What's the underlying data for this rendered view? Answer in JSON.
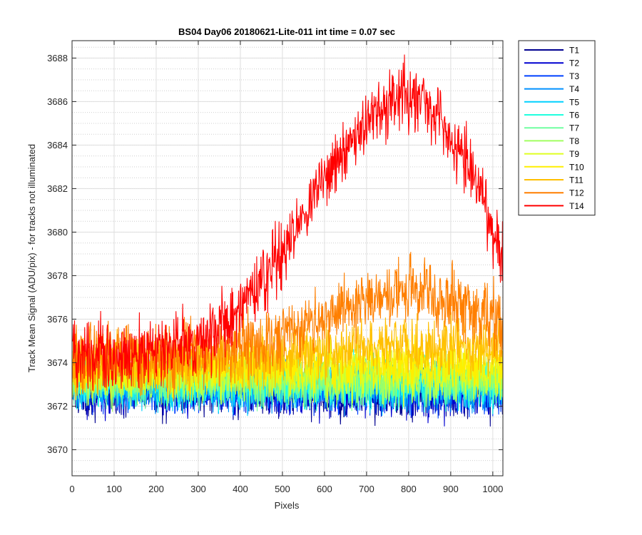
{
  "chart_data": {
    "type": "line",
    "title": "BS04 Day06 20180621-Lite-011 int time = 0.07 sec",
    "xlabel": "Pixels",
    "ylabel": "Track Mean Signal (ADU/pix) - for tracks not illuminated",
    "xlim": [
      0,
      1024
    ],
    "ylim": [
      3668.8,
      3688.8
    ],
    "xticks": [
      0,
      100,
      200,
      300,
      400,
      500,
      600,
      700,
      800,
      900,
      1000
    ],
    "yticks": [
      3670,
      3672,
      3674,
      3676,
      3678,
      3680,
      3682,
      3684,
      3686,
      3688
    ],
    "y_minor_step": 0.5,
    "grid": true,
    "legend_position": "outside-top-right",
    "series": [
      {
        "name": "T1",
        "color": "#00008f",
        "base": [
          [
            0,
            3672.7
          ],
          [
            1024,
            3672.5
          ]
        ],
        "noise": 0.55
      },
      {
        "name": "T2",
        "color": "#0000d0",
        "base": [
          [
            0,
            3672.8
          ],
          [
            1024,
            3672.6
          ]
        ],
        "noise": 0.55
      },
      {
        "name": "T3",
        "color": "#0040ff",
        "base": [
          [
            0,
            3672.9
          ],
          [
            1024,
            3672.7
          ]
        ],
        "noise": 0.55
      },
      {
        "name": "T4",
        "color": "#0090ff",
        "base": [
          [
            0,
            3673.0
          ],
          [
            1024,
            3672.8
          ]
        ],
        "noise": 0.55
      },
      {
        "name": "T5",
        "color": "#00d0ff",
        "base": [
          [
            0,
            3673.0
          ],
          [
            1024,
            3672.9
          ]
        ],
        "noise": 0.55
      },
      {
        "name": "T6",
        "color": "#20ffdf",
        "base": [
          [
            0,
            3673.1
          ],
          [
            1024,
            3673.0
          ]
        ],
        "noise": 0.55
      },
      {
        "name": "T7",
        "color": "#70ffa0",
        "base": [
          [
            0,
            3673.2
          ],
          [
            1024,
            3673.1
          ]
        ],
        "noise": 0.55
      },
      {
        "name": "T8",
        "color": "#a0ff60",
        "base": [
          [
            0,
            3673.3
          ],
          [
            1024,
            3673.3
          ]
        ],
        "noise": 0.55
      },
      {
        "name": "T9",
        "color": "#dfff20",
        "base": [
          [
            0,
            3673.5
          ],
          [
            1024,
            3673.6
          ]
        ],
        "noise": 0.6
      },
      {
        "name": "T10",
        "color": "#ffef00",
        "base": [
          [
            0,
            3673.7
          ],
          [
            400,
            3673.8
          ],
          [
            700,
            3674.0
          ],
          [
            1024,
            3674.0
          ]
        ],
        "noise": 0.6
      },
      {
        "name": "T11",
        "color": "#ffbf00",
        "base": [
          [
            0,
            3673.9
          ],
          [
            400,
            3674.2
          ],
          [
            750,
            3674.8
          ],
          [
            1024,
            3674.6
          ]
        ],
        "noise": 0.65
      },
      {
        "name": "T12",
        "color": "#ff7f00",
        "base": [
          [
            0,
            3674.2
          ],
          [
            300,
            3674.4
          ],
          [
            500,
            3675.3
          ],
          [
            700,
            3676.8
          ],
          [
            800,
            3677.3
          ],
          [
            900,
            3676.8
          ],
          [
            1024,
            3675.8
          ]
        ],
        "noise": 0.75
      },
      {
        "name": "T14",
        "color": "#ff0000",
        "base": [
          [
            0,
            3674.5
          ],
          [
            100,
            3674.2
          ],
          [
            300,
            3674.8
          ],
          [
            400,
            3676.5
          ],
          [
            500,
            3679.0
          ],
          [
            600,
            3682.5
          ],
          [
            700,
            3685.0
          ],
          [
            780,
            3686.4
          ],
          [
            850,
            3685.8
          ],
          [
            950,
            3682.8
          ],
          [
            1024,
            3678.8
          ]
        ],
        "noise": 0.75
      }
    ]
  }
}
